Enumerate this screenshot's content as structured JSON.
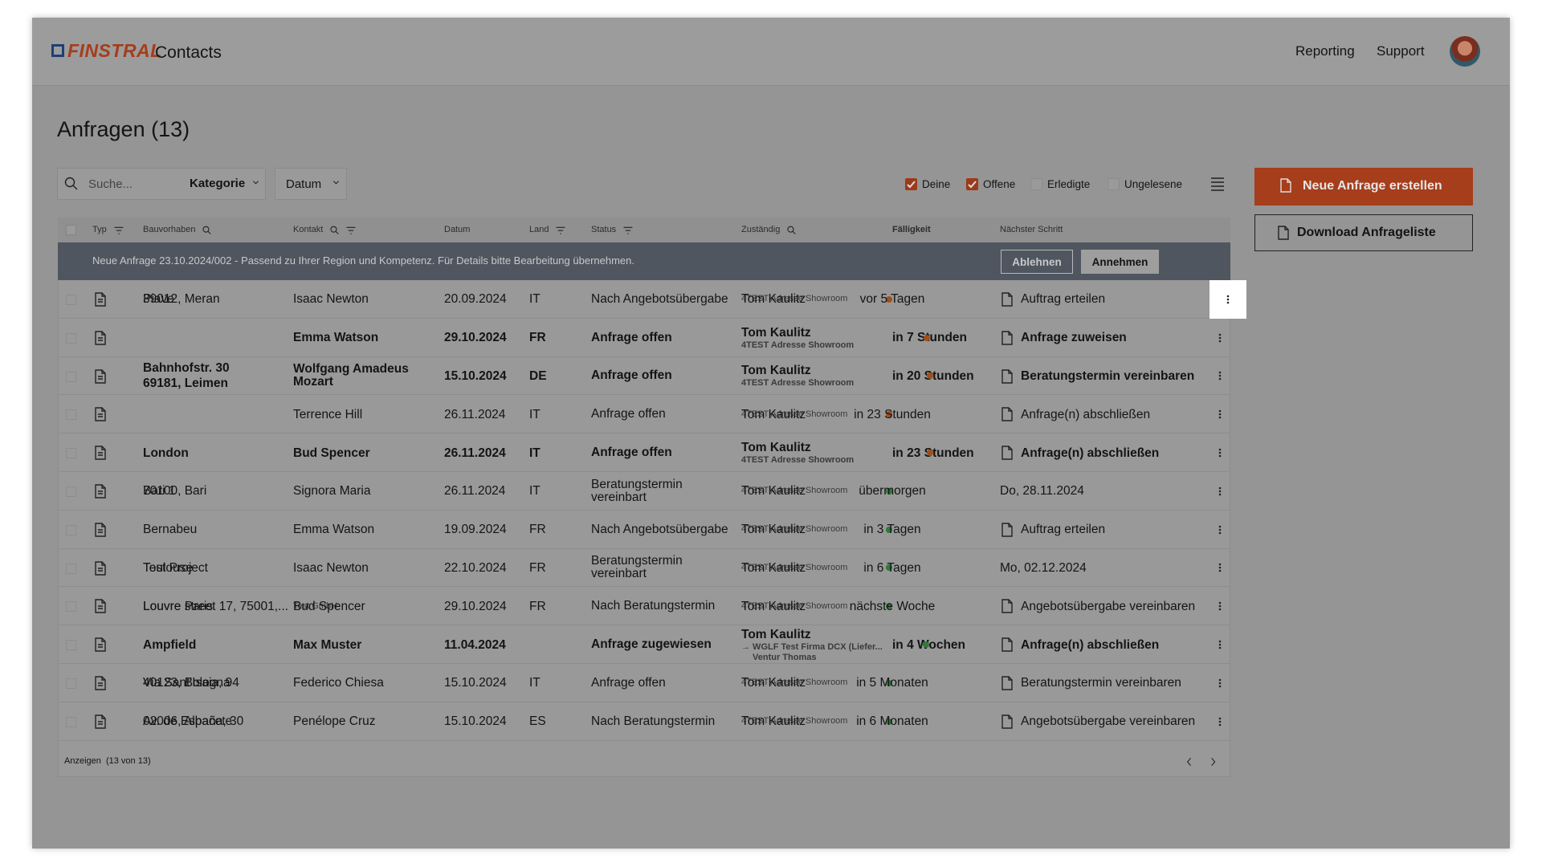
{
  "header": {
    "brand": "FINSTRAL",
    "app": "Contacts",
    "nav": [
      "Reporting",
      "Support"
    ]
  },
  "page": {
    "title": "Anfragen (13)"
  },
  "toolbar": {
    "search": "Suche...",
    "dropdowns": [
      "Kategorie",
      "Datum"
    ],
    "filters": [
      {
        "label": "Deine",
        "checked": true
      },
      {
        "label": "Offene",
        "checked": true
      },
      {
        "label": "Erledigte",
        "checked": false
      },
      {
        "label": "Ungelesene",
        "checked": false
      }
    ]
  },
  "actions": {
    "primary": "Neue Anfrage erstellen",
    "secondary": "Download Anfrageliste"
  },
  "table": {
    "columns": [
      "Typ",
      "Bauvorhaben",
      "Kontakt",
      "Datum",
      "Land",
      "Status",
      "Zuständig",
      "Fälligkeit",
      "Nächster Schritt"
    ],
    "banner": {
      "text": "Neue Anfrage 23.10.2024/002 - Passend zu Ihrer Region und Kompetenz. Für Details bitte Bearbeitung übernehmen.",
      "reject": "Ablehnen",
      "accept": "Annehmen"
    },
    "rows": [
      {
        "bauvorhaben": [
          "Piave",
          "39012, Meran"
        ],
        "kontakt": [
          "Isaac Newton"
        ],
        "datum": "20.09.2024",
        "land": "IT",
        "status": "Nach Angebotsübergabe",
        "zustaendig": [
          "Tom Kaulitz",
          "4TEST Adresse Showroom"
        ],
        "faelligkeit": "vor 5 Tagen",
        "schritt": "Auftrag erteilen"
      },
      {
        "bauvorhaben": [],
        "kontakt": [
          "Emma Watson"
        ],
        "datum": "29.10.2024",
        "land": "FR",
        "status": "Anfrage offen",
        "zustaendig": [
          "Tom Kaulitz",
          "4TEST Adresse Showroom"
        ],
        "faelligkeit": "in 7 Stunden",
        "schritt": "Anfrage zuweisen"
      },
      {
        "bauvorhaben": [
          "Bahnhofstr. 30",
          "69181, Leimen"
        ],
        "kontakt": [
          "Wolfgang Amadeus Mozart"
        ],
        "datum": "15.10.2024",
        "land": "DE",
        "status": "Anfrage offen",
        "zustaendig": [
          "Tom Kaulitz",
          "4TEST Adresse Showroom"
        ],
        "faelligkeit": "in 20 Stunden",
        "schritt": "Beratungstermin vereinbaren"
      },
      {
        "bauvorhaben": [],
        "kontakt": [
          "Terrence Hill"
        ],
        "datum": "26.11.2024",
        "land": "IT",
        "status": "Anfrage offen",
        "zustaendig": [
          "Tom Kaulitz",
          "4TEST Adresse Showroom"
        ],
        "faelligkeit": "in 23 Stunden",
        "schritt": "Anfrage(n) abschließen"
      },
      {
        "bauvorhaben": [
          "London"
        ],
        "kontakt": [
          "Bud Spencer"
        ],
        "datum": "26.11.2024",
        "land": "IT",
        "status": "Anfrage offen",
        "zustaendig": [
          "Tom Kaulitz",
          "4TEST Adresse Showroom"
        ],
        "faelligkeit": "in 23 Stunden",
        "schritt": "Anfrage(n) abschließen"
      },
      {
        "bauvorhaben": [
          "Bari 1",
          "70100, Bari"
        ],
        "kontakt": [
          "Signora Maria"
        ],
        "datum": "26.11.2024",
        "land": "IT",
        "status": "Beratungstermin vereinbart",
        "zustaendig": [
          "Tom Kaulitz",
          "4TEST Adresse Showroom"
        ],
        "faelligkeit": "übermorgen",
        "schritt": "Do, 28.11.2024"
      },
      {
        "bauvorhaben": [
          "Bernabeu"
        ],
        "kontakt": [
          "Emma Watson"
        ],
        "datum": "19.09.2024",
        "land": "FR",
        "status": "Nach Angebotsübergabe",
        "zustaendig": [
          "Tom Kaulitz",
          "4TEST Adresse Showroom"
        ],
        "faelligkeit": "in 3 Tagen",
        "schritt": "Auftrag erteilen"
      },
      {
        "bauvorhaben": [
          "Test Project",
          "Toulouse"
        ],
        "kontakt": [
          "Isaac Newton"
        ],
        "datum": "22.10.2024",
        "land": "FR",
        "status": "Beratungstermin vereinbart",
        "zustaendig": [
          "Tom Kaulitz",
          "4TEST Adresse Showroom"
        ],
        "faelligkeit": "in 6 Tagen",
        "schritt": "Mo, 02.12.2024"
      },
      {
        "bauvorhaben": [
          "Louvre Paris",
          "Louvre street 17, 75001,..."
        ],
        "kontakt": [
          "Bud Spencer",
          "Test GmbH"
        ],
        "datum": "29.10.2024",
        "land": "FR",
        "status": "Nach Beratungstermin",
        "zustaendig": [
          "Tom Kaulitz",
          "4TEST Adresse Showroom"
        ],
        "faelligkeit": "nächste Woche",
        "schritt": "Angebotsübergabe vereinbaren"
      },
      {
        "bauvorhaben": [
          "Ampfield"
        ],
        "kontakt": [
          "Max Muster"
        ],
        "datum": "11.04.2024",
        "land": "",
        "status": "Anfrage zugewiesen",
        "zustaendig": [
          "Tom Kaulitz",
          "→ WGLF Test Firma DCX (Liefer...",
          "Ventur Thomas"
        ],
        "faelligkeit": "in 4 Wochen",
        "schritt": "Anfrage(n) abschließen"
      },
      {
        "bauvorhaben": [
          "Via Sant'Isaia, 94",
          "40123, Bologna"
        ],
        "kontakt": [
          "Federico Chiesa"
        ],
        "datum": "15.10.2024",
        "land": "IT",
        "status": "Anfrage offen",
        "zustaendig": [
          "Tom Kaulitz",
          "4TEST Adresse Showroom"
        ],
        "faelligkeit": "in 5 Monaten",
        "schritt": "Beratungstermin vereinbaren"
      },
      {
        "bauvorhaben": [
          "Av. de España, 30",
          "02006, Albacete"
        ],
        "kontakt": [
          "Penélope Cruz"
        ],
        "datum": "15.10.2024",
        "land": "ES",
        "status": "Nach Beratungstermin",
        "zustaendig": [
          "Tom Kaulitz",
          "4TEST Adresse Showroom"
        ],
        "faelligkeit": "in 6 Monaten",
        "schritt": "Angebotsübergabe vereinbaren"
      }
    ],
    "footer": "Anzeigen  (13 von 13)"
  }
}
